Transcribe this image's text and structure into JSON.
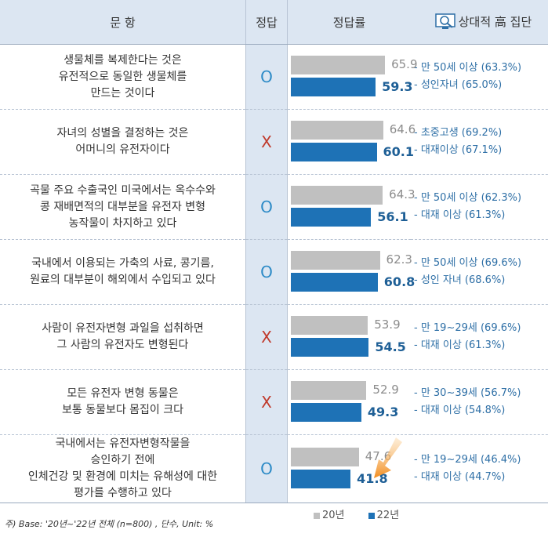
{
  "header": {
    "question": "문 항",
    "answer": "정답",
    "rate": "정답률",
    "groups": "상대적 高 집단"
  },
  "colors": {
    "bar_2020": "#c0c0c0",
    "bar_2022": "#1e72b6",
    "o_mark": "#2e8bc7",
    "x_mark": "#c0392b"
  },
  "chart_data": {
    "type": "bar",
    "orientation": "horizontal",
    "xlim": [
      0,
      100
    ],
    "series_names": [
      "20년",
      "22년"
    ],
    "rows": [
      {
        "question": "생물체를 복제한다는 것은\n유전적으로 동일한 생물체를\n만드는 것이다",
        "answer": "O",
        "v20": 65.9,
        "v22": 59.3,
        "groups": [
          "- 만 50세 이상 (63.3%)",
          "- 성인자녀 (65.0%)"
        ]
      },
      {
        "question": "자녀의 성별을 결정하는 것은\n어머니의 유전자이다",
        "answer": "X",
        "v20": 64.6,
        "v22": 60.1,
        "groups": [
          "- 초중고생 (69.2%)",
          "- 대재이상 (67.1%)"
        ]
      },
      {
        "question": "곡물 주요 수출국인 미국에서는 옥수수와\n콩 재배면적의 대부분을 유전자 변형\n농작물이 차지하고 있다",
        "answer": "O",
        "v20": 64.3,
        "v22": 56.1,
        "groups": [
          "- 만 50세 이상 (62.3%)",
          "- 대재 이상 (61.3%)"
        ]
      },
      {
        "question": "국내에서 이용되는 가축의 사료, 콩기름,\n원료의 대부분이 해외에서 수입되고 있다",
        "answer": "O",
        "v20": 62.3,
        "v22": 60.8,
        "groups": [
          "- 만 50세 이상 (69.6%)",
          "- 성인 자녀 (68.6%)"
        ]
      },
      {
        "question": "사람이 유전자변형 과일을 섭취하면\n그 사람의 유전자도 변형된다",
        "answer": "X",
        "v20": 53.9,
        "v22": 54.5,
        "groups": [
          "- 만 19~29세 (69.6%)",
          "- 대재 이상 (61.3%)"
        ]
      },
      {
        "question": "모든 유전자 변형 동물은\n보통 동물보다 몸집이 크다",
        "answer": "X",
        "v20": 52.9,
        "v22": 49.3,
        "groups": [
          "- 만 30~39세 (56.7%)",
          "- 대재 이상 (54.8%)"
        ]
      },
      {
        "question": "국내에서는 유전자변형작물을\n승인하기 전에\n인체건강 및 환경에 미치는 유해성에 대한\n평가를 수행하고 있다",
        "answer": "O",
        "v20": 47.6,
        "v22": 41.8,
        "groups": [
          "- 만 19~29세 (46.4%)",
          "- 대재 이상 (44.7%)"
        ]
      }
    ]
  },
  "legend": {
    "s20": "20년",
    "s22": "22년"
  },
  "footnote": "주) Base: '20년~'22년 전체 (n=800) , 단수, Unit: %"
}
